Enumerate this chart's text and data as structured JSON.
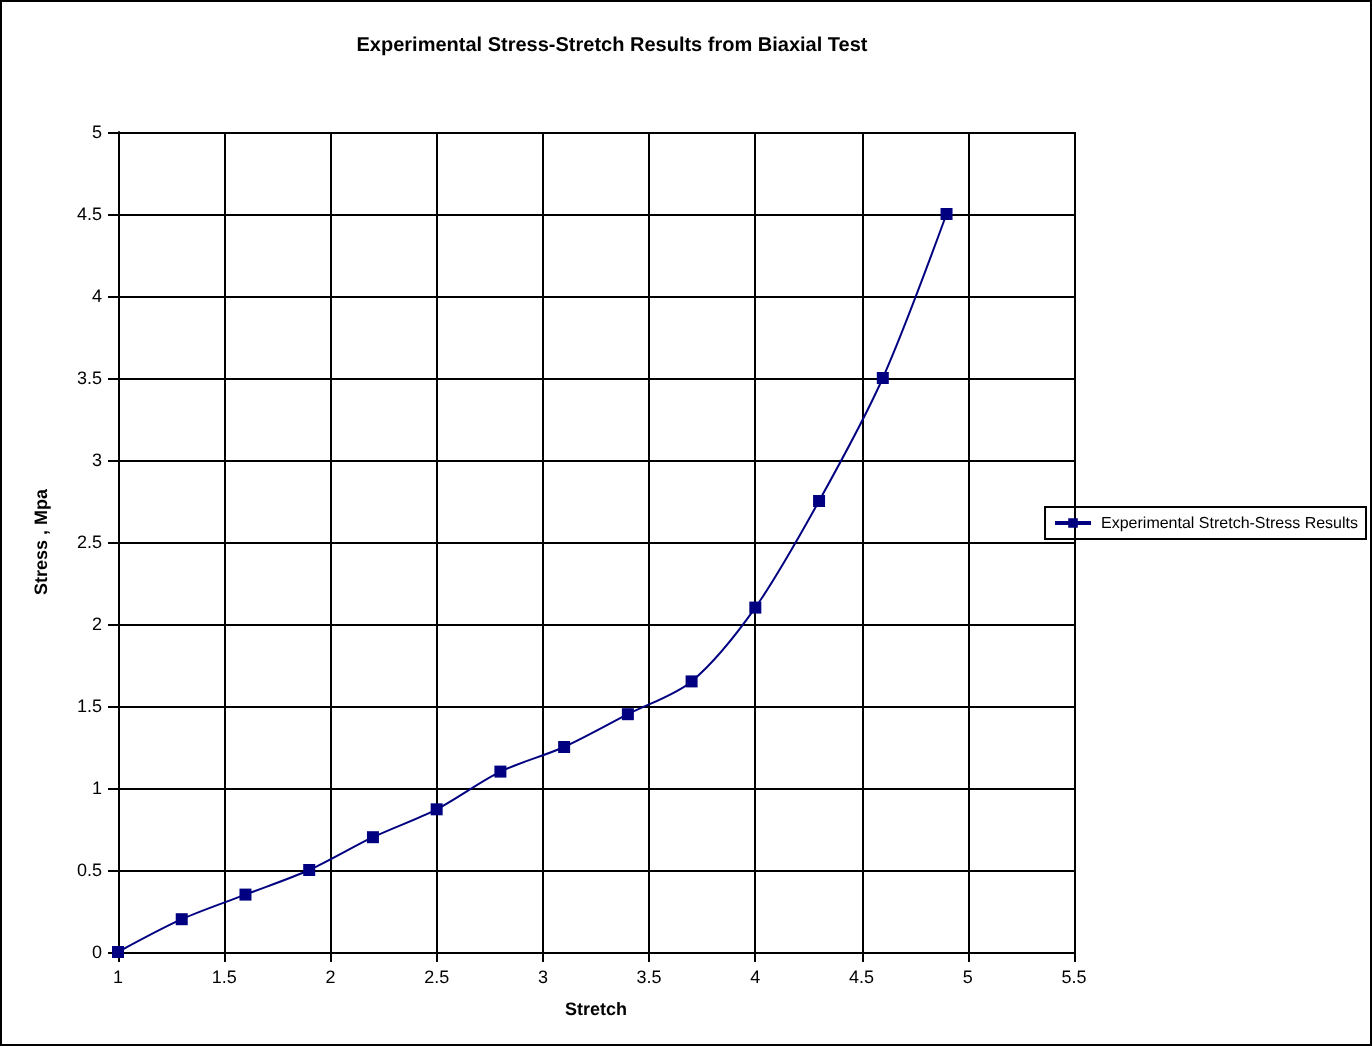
{
  "chart_data": {
    "type": "line",
    "title": "Experimental Stress-Stretch Results from Biaxial Test",
    "xlabel": "Stretch",
    "ylabel": "Stress , Mpa",
    "x": [
      1,
      1.3,
      1.6,
      1.9,
      2.2,
      2.5,
      2.8,
      3.1,
      3.4,
      3.7,
      4.0,
      4.3,
      4.6,
      4.9
    ],
    "series": [
      {
        "name": "Experimental Stretch-Stress Results",
        "color": "#000080",
        "values": [
          0,
          0.2,
          0.35,
          0.5,
          0.7,
          0.87,
          1.1,
          1.25,
          1.45,
          1.65,
          2.1,
          2.75,
          3.5,
          4.5
        ]
      }
    ],
    "xlim": [
      1,
      5.5
    ],
    "xticks": [
      1,
      1.5,
      2,
      2.5,
      3,
      3.5,
      4,
      4.5,
      5,
      5.5
    ],
    "ylim": [
      0,
      5
    ],
    "yticks": [
      0,
      0.5,
      1,
      1.5,
      2,
      2.5,
      3,
      3.5,
      4,
      4.5,
      5
    ],
    "grid": true,
    "legend": "right",
    "marker": "square",
    "line_style": "solid"
  }
}
